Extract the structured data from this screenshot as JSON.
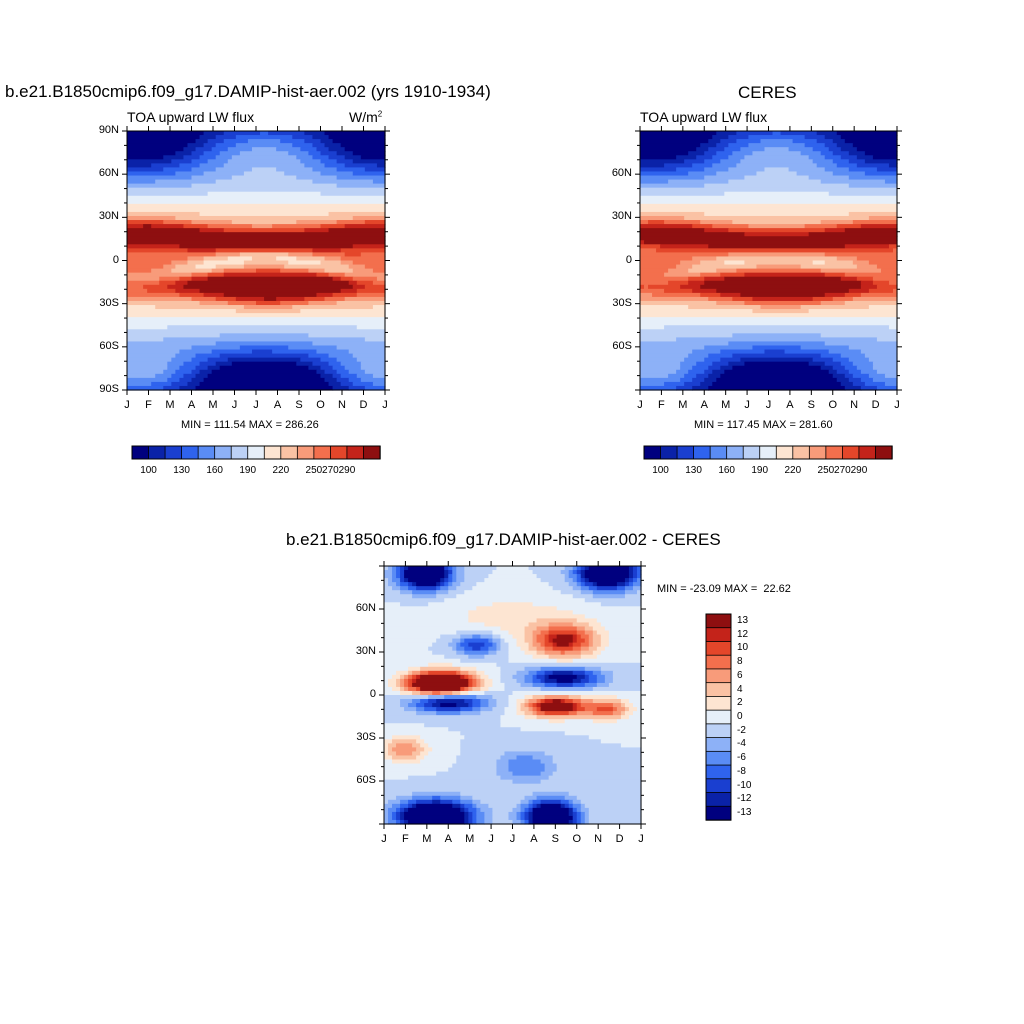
{
  "page": {
    "top_left_title": "b.e21.B1850cmip6.f09_g17.DAMIP-hist-aer.002 (yrs 1910-1934)",
    "top_right_title": "CERES",
    "bottom_title": "b.e21.B1850cmip6.f09_g17.DAMIP-hist-aer.002 - CERES"
  },
  "colors": {
    "absolute_palette": [
      "#00007f",
      "#0a22a8",
      "#1a3fd0",
      "#2f63ee",
      "#5a8cf5",
      "#8db1f7",
      "#bcd1f6",
      "#e6eff9",
      "#fde5d2",
      "#fac2a4",
      "#f89b7a",
      "#f36f4d",
      "#e4462a",
      "#c4231a",
      "#8e0f10"
    ],
    "diff_palette": [
      "#00007f",
      "#0a22a8",
      "#1a3fd0",
      "#2f63ee",
      "#5a8cf5",
      "#8db1f7",
      "#bcd1f6",
      "#e6eff9",
      "#fde5d2",
      "#fac2a4",
      "#f89b7a",
      "#f36f4d",
      "#e4462a",
      "#c4231a",
      "#8e0f10"
    ]
  },
  "chart_data": [
    {
      "type": "heatmap",
      "title": "b.e21.B1850cmip6.f09_g17.DAMIP-hist-aer.002 (yrs 1910-1934)",
      "variable_label": "TOA upward LW flux",
      "units_label": "W/m",
      "units_superscript": "2",
      "x_tick_labels": [
        "J",
        "F",
        "M",
        "A",
        "M",
        "J",
        "J",
        "A",
        "S",
        "O",
        "N",
        "D",
        "J"
      ],
      "y_tick_labels": [
        "90N",
        "60N",
        "30N",
        "0",
        "30S",
        "60S",
        "90S"
      ],
      "ylim": [
        -90,
        90
      ],
      "min_max_text": "MIN = 111.54 MAX = 286.26",
      "colorbar_levels": [
        "100",
        "130",
        "160",
        "190",
        "220",
        "250",
        "270",
        "290"
      ],
      "grid": false
    },
    {
      "type": "heatmap",
      "title": "CERES",
      "variable_label": "TOA upward LW flux",
      "x_tick_labels": [
        "J",
        "F",
        "M",
        "A",
        "M",
        "J",
        "J",
        "A",
        "S",
        "O",
        "N",
        "D",
        "J"
      ],
      "y_tick_labels": [
        "60N",
        "30N",
        "0",
        "30S",
        "60S"
      ],
      "ylim": [
        -90,
        90
      ],
      "min_max_text": "MIN = 117.45 MAX = 281.60",
      "colorbar_levels": [
        "100",
        "130",
        "160",
        "190",
        "220",
        "250",
        "270",
        "290"
      ],
      "grid": false
    },
    {
      "type": "heatmap",
      "title": "b.e21.B1850cmip6.f09_g17.DAMIP-hist-aer.002 - CERES",
      "x_tick_labels": [
        "J",
        "F",
        "M",
        "A",
        "M",
        "J",
        "J",
        "A",
        "S",
        "O",
        "N",
        "D",
        "J"
      ],
      "y_tick_labels": [
        "60N",
        "30N",
        "0",
        "30S",
        "60S"
      ],
      "ylim": [
        -90,
        90
      ],
      "min_max_text": "MIN = -23.09 MAX =  22.62",
      "colorbar_levels": [
        "13",
        "12",
        "10",
        "8",
        "6",
        "4",
        "2",
        "0",
        "-2",
        "-4",
        "-6",
        "-8",
        "-10",
        "-12",
        "-13"
      ],
      "grid": false
    }
  ]
}
